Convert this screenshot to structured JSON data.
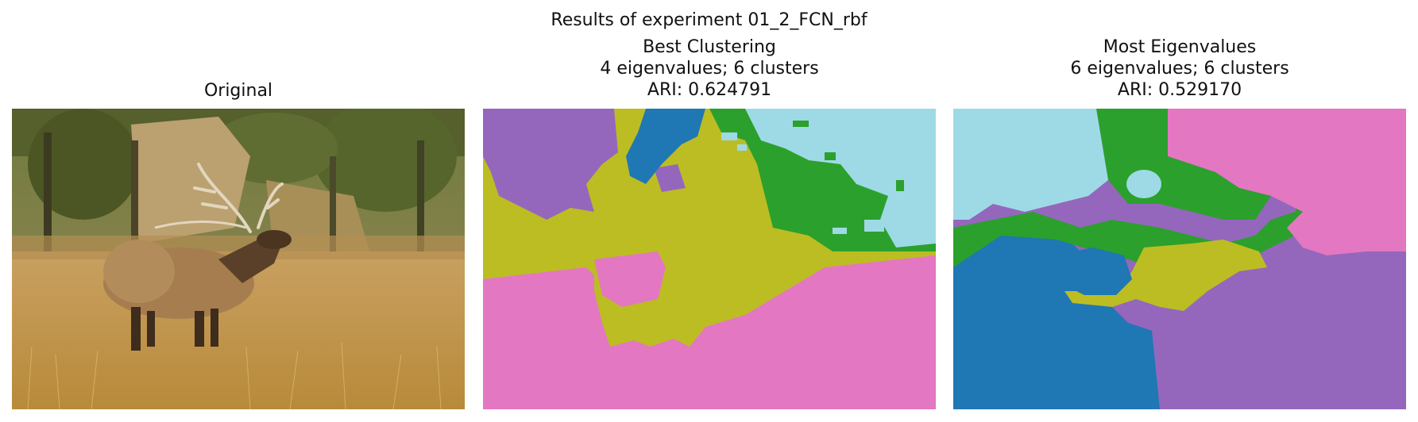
{
  "figure": {
    "suptitle": "Results of experiment 01_2_FCN_rbf"
  },
  "panels": [
    {
      "id": "original",
      "title_lines": [
        "Original"
      ],
      "image_description": "elk-in-grass-photo"
    },
    {
      "id": "best",
      "title_lines": [
        "Best Clustering",
        "4 eigenvalues; 6 clusters",
        "ARI: 0.624791"
      ],
      "eigenvalues": 4,
      "clusters": 6,
      "ari": 0.624791
    },
    {
      "id": "most",
      "title_lines": [
        "Most Eigenvalues",
        "6 eigenvalues; 6 clusters",
        "ARI: 0.529170"
      ],
      "eigenvalues": 6,
      "clusters": 6,
      "ari": 0.52917
    }
  ],
  "palette": {
    "purple": "#9467bd",
    "blue": "#1f77b4",
    "olive": "#bcbd22",
    "green": "#2ca02c",
    "cyan": "#9edae5",
    "pink": "#e377c2"
  }
}
